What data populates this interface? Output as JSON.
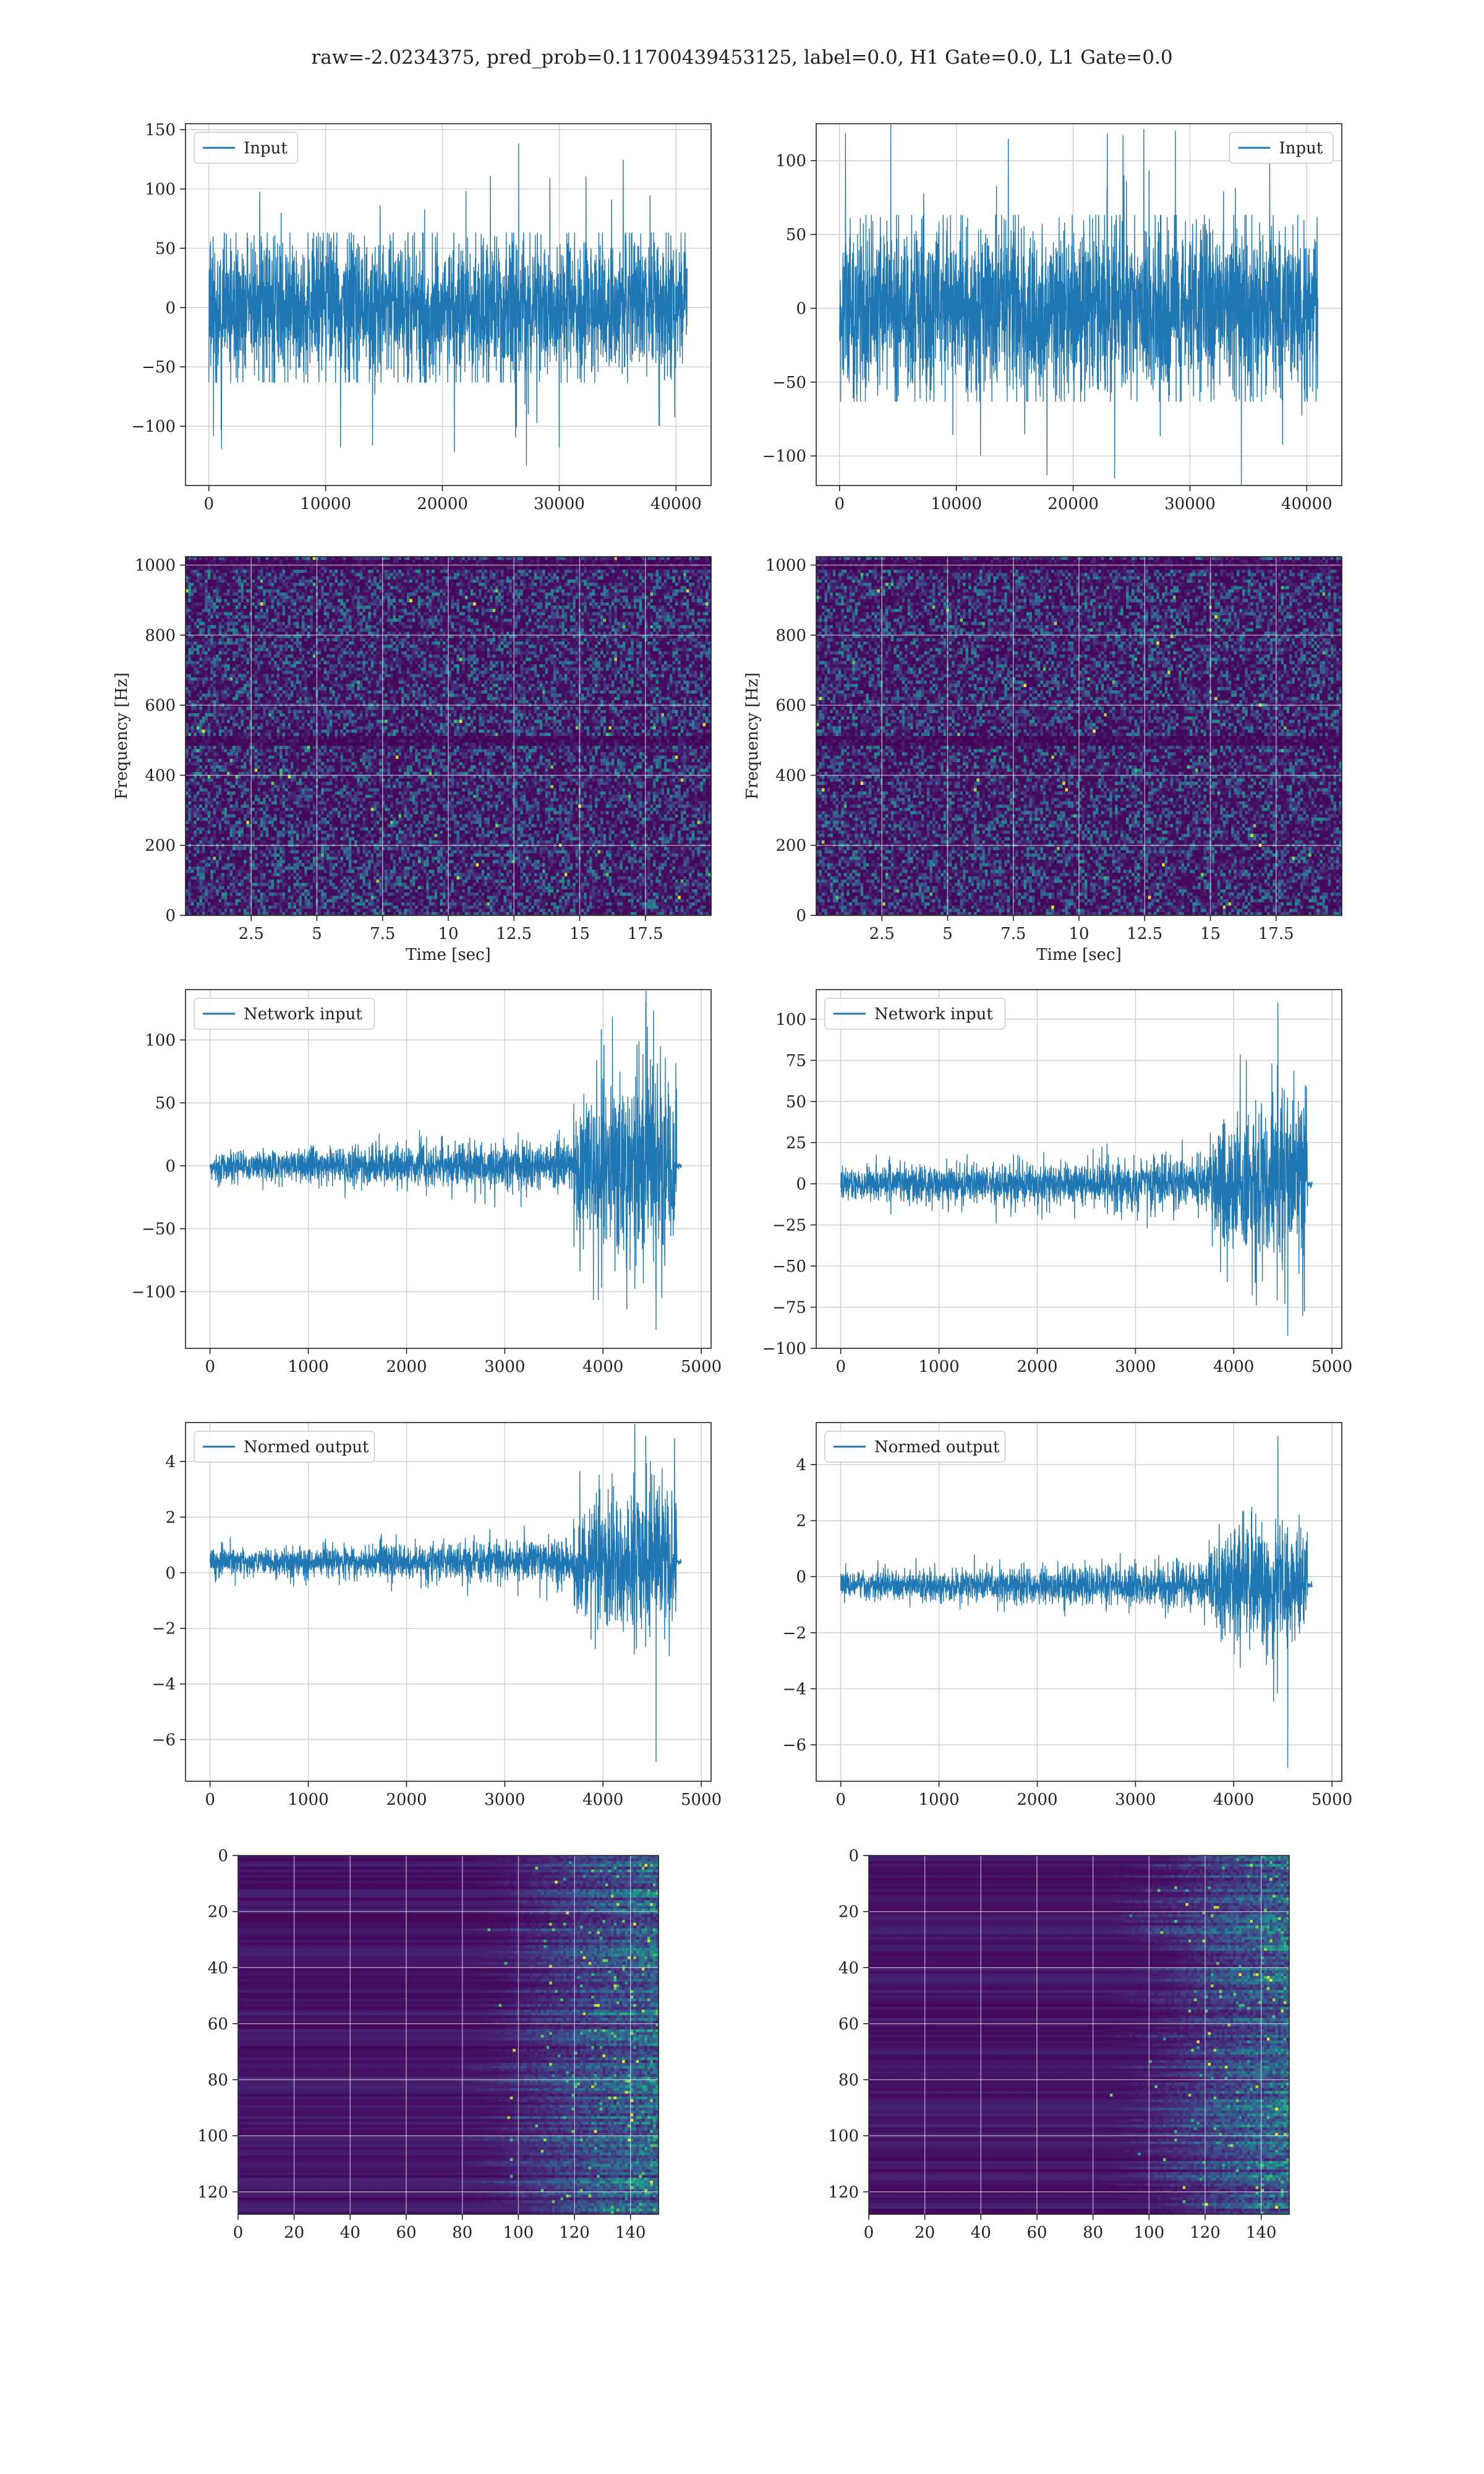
{
  "figure": {
    "suptitle": "raw=-2.0234375, pred_prob=0.11700439453125, label=0.0, H1 Gate=0.0, L1 Gate=0.0"
  },
  "colors": {
    "line": "#1f77b4",
    "grid": "#d0d0d0",
    "axes": "#222222"
  },
  "chart_data": [
    {
      "id": "input-h1",
      "type": "line",
      "legend": "Input",
      "legend_loc": "upper-left",
      "xlim": [
        -2000,
        43000
      ],
      "ylim": [
        -150,
        155
      ],
      "xticks": [
        0,
        10000,
        20000,
        30000,
        40000
      ],
      "yticks": [
        -100,
        -50,
        0,
        50,
        100,
        150
      ],
      "signal": {
        "n": 40960,
        "amp_mid": 60,
        "amp_max": 138,
        "amp_min": -133
      }
    },
    {
      "id": "input-l1",
      "type": "line",
      "legend": "Input",
      "legend_loc": "upper-right",
      "xlim": [
        -2000,
        43000
      ],
      "ylim": [
        -120,
        125
      ],
      "xticks": [
        0,
        10000,
        20000,
        30000,
        40000
      ],
      "yticks": [
        -100,
        -50,
        0,
        50,
        100
      ],
      "signal": {
        "n": 40960,
        "amp_mid": 60,
        "amp_max": 120,
        "amp_min": -115
      }
    },
    {
      "id": "spectrogram-h1",
      "type": "heatmap",
      "colormap": "viridis",
      "xlabel": "Time [sec]",
      "ylabel": "Frequency [Hz]",
      "xlim": [
        0,
        20
      ],
      "ylim": [
        0,
        1024
      ],
      "xticks": [
        2.5,
        5.0,
        7.5,
        10.0,
        12.5,
        15.0,
        17.5
      ],
      "yticks": [
        0,
        200,
        400,
        600,
        800,
        1000
      ],
      "dark_bands_hz": [
        500,
        1000
      ]
    },
    {
      "id": "spectrogram-l1",
      "type": "heatmap",
      "colormap": "viridis",
      "xlabel": "Time [sec]",
      "ylabel": "Frequency [Hz]",
      "xlim": [
        0,
        20
      ],
      "ylim": [
        0,
        1024
      ],
      "xticks": [
        2.5,
        5.0,
        7.5,
        10.0,
        12.5,
        15.0,
        17.5
      ],
      "yticks": [
        0,
        200,
        400,
        600,
        800,
        1000
      ],
      "dark_bands_hz": [
        500,
        1000
      ]
    },
    {
      "id": "network-input-h1",
      "type": "line",
      "legend": "Network input",
      "legend_loc": "upper-left",
      "xlim": [
        -250,
        5100
      ],
      "ylim": [
        -145,
        140
      ],
      "xticks": [
        0,
        1000,
        2000,
        3000,
        4000,
        5000
      ],
      "yticks": [
        -100,
        -50,
        0,
        50,
        100
      ],
      "signal": {
        "n": 4800,
        "chirp_start": 3700,
        "end": 4750,
        "tail_end": 4800,
        "amp_base": 15,
        "amp_chirp": 70,
        "amp_max": 130,
        "amp_min": -130
      }
    },
    {
      "id": "network-input-l1",
      "type": "line",
      "legend": "Network input",
      "legend_loc": "upper-left",
      "xlim": [
        -250,
        5100
      ],
      "ylim": [
        -100,
        118
      ],
      "xticks": [
        0,
        1000,
        2000,
        3000,
        4000,
        5000
      ],
      "yticks": [
        -100,
        -75,
        -50,
        -25,
        0,
        25,
        50,
        75,
        100
      ],
      "signal": {
        "n": 4800,
        "chirp_start": 3750,
        "end": 4750,
        "tail_end": 4800,
        "amp_base": 12,
        "amp_chirp": 45,
        "amp_max": 110,
        "amp_min": -92
      }
    },
    {
      "id": "normed-output-h1",
      "type": "line",
      "legend": "Normed output",
      "legend_loc": "upper-left",
      "xlim": [
        -250,
        5100
      ],
      "ylim": [
        -7.5,
        5.4
      ],
      "xticks": [
        0,
        1000,
        2000,
        3000,
        4000,
        5000
      ],
      "yticks": [
        -6,
        -4,
        -2,
        0,
        2,
        4
      ],
      "signal": {
        "n": 4800,
        "offset": 0.4,
        "chirp_start": 3700,
        "end": 4750,
        "tail_end": 4800,
        "amp_base": 0.6,
        "amp_chirp": 2.5,
        "amp_max": 4.9,
        "amp_min": -6.8
      }
    },
    {
      "id": "normed-output-l1",
      "type": "line",
      "legend": "Normed output",
      "legend_loc": "upper-left",
      "xlim": [
        -250,
        5100
      ],
      "ylim": [
        -7.3,
        5.5
      ],
      "xticks": [
        0,
        1000,
        2000,
        3000,
        4000,
        5000
      ],
      "yticks": [
        -6,
        -4,
        -2,
        0,
        2,
        4
      ],
      "signal": {
        "n": 4800,
        "offset": -0.3,
        "chirp_start": 3750,
        "end": 4750,
        "tail_end": 4800,
        "amp_base": 0.6,
        "amp_chirp": 2.0,
        "amp_max": 5.0,
        "amp_min": -6.8
      }
    },
    {
      "id": "feature-map-h1",
      "type": "heatmap",
      "colormap": "viridis",
      "xlim": [
        0,
        150
      ],
      "ylim": [
        128,
        0
      ],
      "xticks": [
        0,
        20,
        40,
        60,
        80,
        100,
        120,
        140
      ],
      "yticks": [
        0,
        20,
        40,
        60,
        80,
        100,
        120
      ],
      "activity_onset_x": 85
    },
    {
      "id": "feature-map-l1",
      "type": "heatmap",
      "colormap": "viridis",
      "xlim": [
        0,
        150
      ],
      "ylim": [
        128,
        0
      ],
      "xticks": [
        0,
        20,
        40,
        60,
        80,
        100,
        120,
        140
      ],
      "yticks": [
        0,
        20,
        40,
        60,
        80,
        100,
        120
      ],
      "activity_onset_x": 90
    }
  ]
}
